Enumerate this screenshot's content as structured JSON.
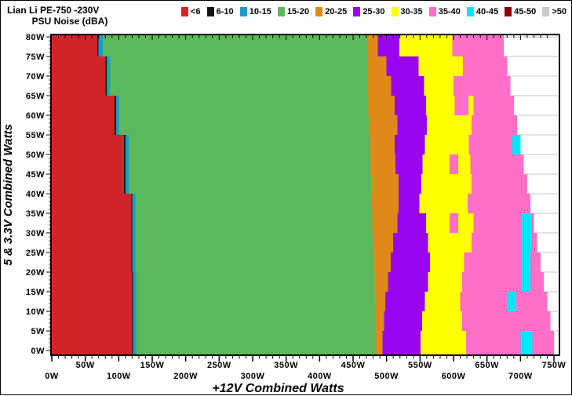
{
  "header": {
    "title": "Lian Li PE-750 -230V",
    "subtitle": "PSU Noise (dBA)"
  },
  "chart_data": {
    "type": "heatmap",
    "title": "Lian Li PE-750 -230V",
    "subtitle": "PSU Noise (dBA)",
    "xlabel": "+12V Combined Watts",
    "ylabel": "5 & 3.3V Combined Watts",
    "xlim": [
      0,
      750
    ],
    "ylim": [
      0,
      80
    ],
    "x_unit": "W",
    "y_unit": "W",
    "grid": "horizontal-5W-visible-in-no-data-region",
    "legend_position": "top",
    "x_tick_labels": [
      "0W",
      "50W",
      "100W",
      "150W",
      "200W",
      "250W",
      "300W",
      "350W",
      "400W",
      "450W",
      "500W",
      "550W",
      "600W",
      "650W",
      "700W",
      "750W"
    ],
    "y_tick_labels": [
      "0W",
      "5W",
      "10W",
      "15W",
      "20W",
      "25W",
      "30W",
      "35W",
      "40W",
      "45W",
      "50W",
      "55W",
      "60W",
      "65W",
      "70W",
      "75W",
      "80W"
    ],
    "legend": [
      {
        "label": "<6",
        "color_key": "red"
      },
      {
        "label": "6-10",
        "color_key": "black"
      },
      {
        "label": "10-15",
        "color_key": "blue"
      },
      {
        "label": "15-20",
        "color_key": "green"
      },
      {
        "label": "20-25",
        "color_key": "orange"
      },
      {
        "label": "25-30",
        "color_key": "purple"
      },
      {
        "label": "30-35",
        "color_key": "yellow"
      },
      {
        "label": "35-40",
        "color_key": "pink"
      },
      {
        "label": "40-45",
        "color_key": "cyan"
      },
      {
        "label": "45-50",
        "color_key": "darkred"
      },
      {
        "label": ">50",
        "color_key": "gray"
      }
    ],
    "colors": {
      "red": "#d12428",
      "black": "#141414",
      "blue": "#1b9cc9",
      "green": "#5cb85c",
      "orange": "#df8a18",
      "purple": "#9a05ef",
      "yellow": "#ffff00",
      "pink": "#ff6ec7",
      "cyan": "#00e8f8",
      "darkred": "#8b0000",
      "gray": "#c9c9c9"
    },
    "band_order": [
      "red",
      "black",
      "blue",
      "green",
      "orange",
      "purple",
      "yellow",
      "pink"
    ],
    "row_height_watts": 5,
    "rows_note": "Each row = [y0(5V watts), red_end, black_end, blue_end, green_end, orange_end, purple_end, yellow_end, pink_end(data edge), patches[[color,x0,x1]...]] ; all x values in +12V watts",
    "rows": [
      [
        0,
        120,
        121,
        126,
        484,
        494,
        551,
        619,
        750,
        [
          [
            "cyan",
            700,
            718
          ]
        ]
      ],
      [
        5,
        120,
        121,
        126,
        484,
        496,
        553,
        613,
        745,
        []
      ],
      [
        10,
        120,
        121,
        126,
        483,
        498,
        557,
        610,
        740,
        [
          [
            "cyan",
            680,
            694
          ]
        ]
      ],
      [
        15,
        120,
        121,
        126,
        482,
        502,
        562,
        613,
        735,
        [
          [
            "cyan",
            701,
            715
          ]
        ]
      ],
      [
        20,
        119,
        120,
        125,
        481,
        506,
        565,
        616,
        730,
        [
          [
            "cyan",
            701,
            715
          ]
        ]
      ],
      [
        25,
        119,
        120,
        125,
        480,
        510,
        562,
        627,
        725,
        [
          [
            "cyan",
            701,
            716
          ]
        ]
      ],
      [
        30,
        119,
        120,
        125,
        479,
        516,
        559,
        630,
        720,
        [
          [
            "cyan",
            701,
            716
          ],
          [
            "pink",
            594,
            607
          ]
        ]
      ],
      [
        35,
        119,
        120,
        125,
        478,
        518,
        549,
        621,
        715,
        []
      ],
      [
        40,
        108,
        110,
        115,
        477,
        518,
        552,
        627,
        710,
        []
      ],
      [
        45,
        108,
        110,
        115,
        476,
        513,
        554,
        625,
        705,
        [
          [
            "pink",
            594,
            607
          ]
        ]
      ],
      [
        50,
        108,
        110,
        115,
        475,
        512,
        557,
        623,
        700,
        [
          [
            "cyan",
            688,
            700
          ]
        ]
      ],
      [
        55,
        94,
        96,
        101,
        474,
        516,
        560,
        627,
        695,
        []
      ],
      [
        60,
        94,
        96,
        101,
        473,
        512,
        559,
        630,
        690,
        [
          [
            "pink",
            602,
            622
          ]
        ]
      ],
      [
        65,
        80,
        82,
        87,
        472,
        507,
        556,
        620,
        685,
        [
          [
            "pink",
            600,
            622
          ]
        ]
      ],
      [
        70,
        80,
        82,
        87,
        472,
        500,
        548,
        614,
        680,
        []
      ],
      [
        75,
        68,
        70,
        76,
        471,
        487,
        533,
        598,
        675,
        [
          [
            "yellow",
            519,
            534
          ]
        ]
      ]
    ]
  }
}
